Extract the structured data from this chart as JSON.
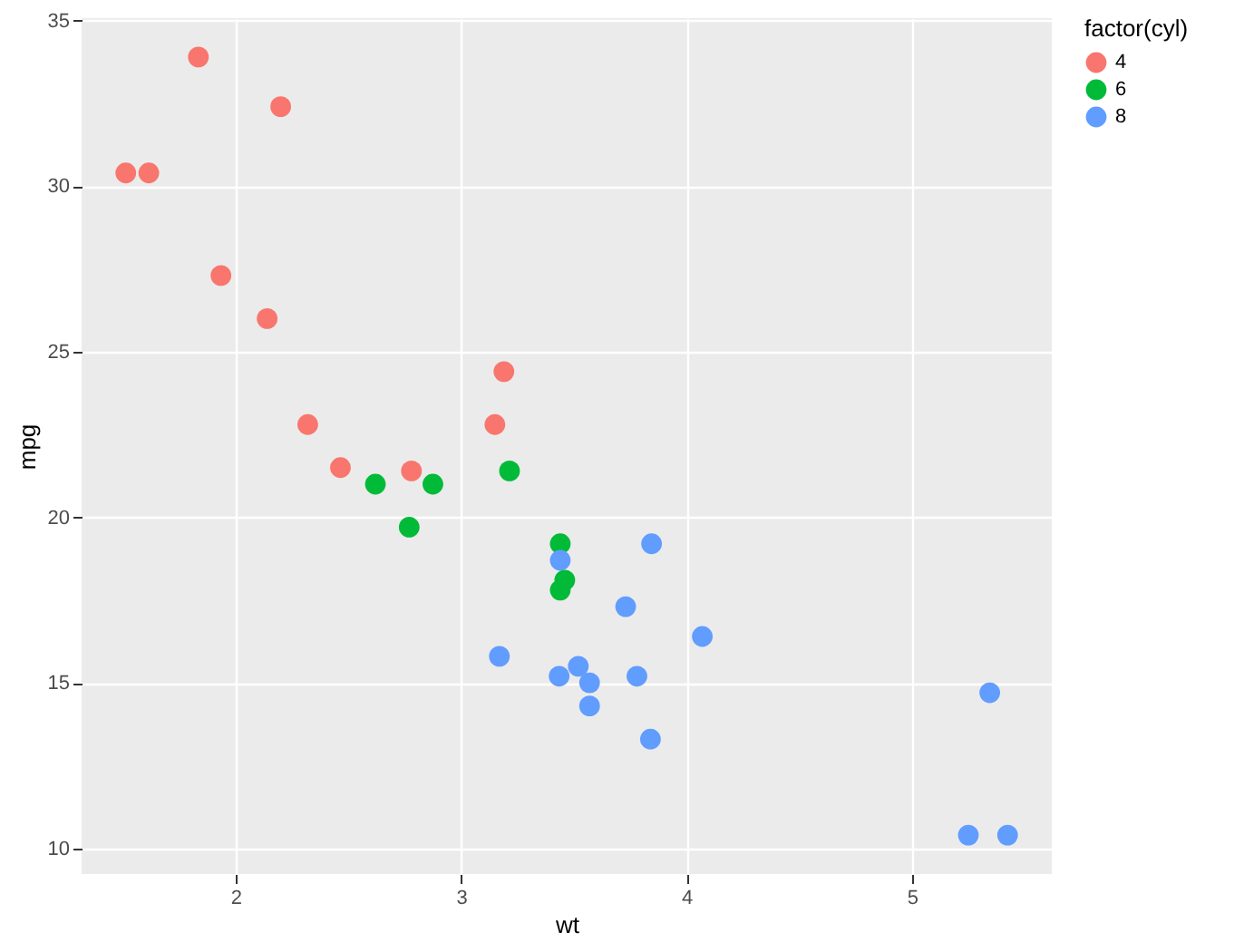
{
  "chart_data": {
    "type": "scatter",
    "xlabel": "wt",
    "ylabel": "mpg",
    "legend_title": "factor(cyl)",
    "legend": "right",
    "grid": true,
    "marker": "circle",
    "xlim": [
      1.317,
      5.62
    ],
    "xticks": [
      2,
      3,
      4,
      5
    ],
    "ylim": [
      9.225,
      35.075
    ],
    "yticks": [
      10,
      15,
      20,
      25,
      30,
      35
    ],
    "series": [
      {
        "name": "4",
        "color": "#f8766d",
        "x": [
          2.32,
          3.19,
          3.15,
          2.2,
          1.615,
          1.835,
          2.465,
          1.935,
          2.14,
          1.513,
          2.78
        ],
        "values": [
          22.8,
          24.4,
          22.8,
          32.4,
          30.4,
          33.9,
          21.5,
          27.3,
          26.0,
          30.4,
          21.4
        ]
      },
      {
        "name": "6",
        "color": "#00ba38",
        "x": [
          2.62,
          2.875,
          3.215,
          3.46,
          3.44,
          3.44,
          2.77
        ],
        "values": [
          21.0,
          21.0,
          21.4,
          18.1,
          19.2,
          17.8,
          19.7
        ]
      },
      {
        "name": "8",
        "color": "#619cff",
        "x": [
          3.44,
          3.57,
          4.07,
          3.73,
          3.78,
          5.25,
          5.424,
          5.345,
          3.52,
          3.435,
          3.84,
          3.845,
          3.17,
          3.57
        ],
        "values": [
          18.7,
          14.3,
          16.4,
          17.3,
          15.2,
          10.4,
          10.4,
          14.7,
          15.5,
          15.2,
          13.3,
          19.2,
          15.8,
          15.0
        ]
      }
    ]
  }
}
